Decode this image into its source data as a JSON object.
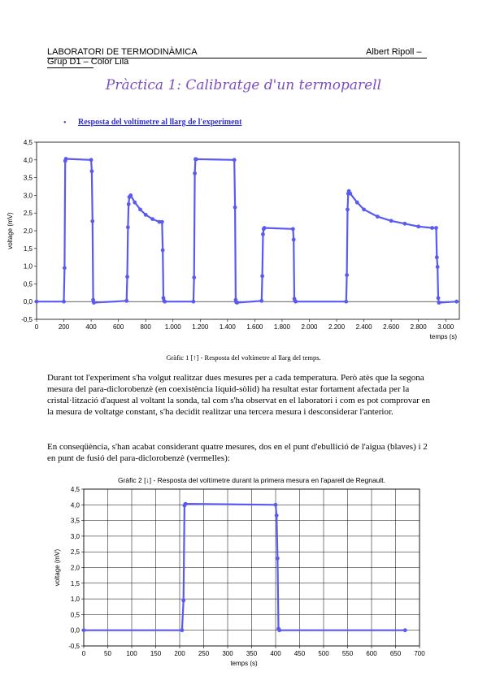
{
  "header": {
    "line1": "LABORATORI DE TERMODINÀMICA",
    "line2": "Grup D1 – Color Lila",
    "author": "Albert Ripoll –"
  },
  "title": "Pràctica 1: Calibratge d'un termoparell",
  "section": {
    "bullet": "•",
    "heading": "Resposta del voltímetre al llarg de l'experiment"
  },
  "colors": {
    "series": "#5a5af0",
    "title": "#7a4fc4",
    "link": "#2f2fd0"
  },
  "chart_data": [
    {
      "type": "line",
      "title": "",
      "xlabel": "temps (s)",
      "ylabel": "voltage (mV)",
      "xlim": [
        0,
        3100
      ],
      "ylim": [
        -0.5,
        4.5
      ],
      "x_ticks": [
        0,
        200,
        400,
        600,
        800,
        1000,
        1200,
        1400,
        1600,
        1800,
        2000,
        2200,
        2400,
        2600,
        2800,
        3000
      ],
      "x_tick_labels": [
        "0",
        "200",
        "400",
        "600",
        "800",
        "1.000",
        "1.200",
        "1.400",
        "1.600",
        "1.800",
        "2.000",
        "2.200",
        "2.400",
        "2.600",
        "2.800",
        "3.000"
      ],
      "y_ticks": [
        -0.5,
        0.0,
        0.5,
        1.0,
        1.5,
        2.0,
        2.5,
        3.0,
        3.5,
        4.0,
        4.5
      ],
      "y_tick_labels": [
        "-0,5",
        "0,0",
        "0,5",
        "1,0",
        "1,5",
        "2,0",
        "2,5",
        "3,0",
        "3,5",
        "4,0",
        "4,5"
      ],
      "grid": false,
      "series": [
        {
          "x": [
            0,
            200,
            205,
            210,
            215,
            400,
            405,
            410,
            415,
            420,
            660,
            665,
            670,
            675,
            680,
            690,
            720,
            760,
            800,
            850,
            900,
            920,
            925,
            930,
            935,
            940,
            1150,
            1155,
            1160,
            1165,
            1170,
            1450,
            1455,
            1460,
            1465,
            1470,
            1650,
            1655,
            1660,
            1665,
            1670,
            1880,
            1885,
            1890,
            1895,
            1900,
            2270,
            2275,
            2280,
            2285,
            2290,
            2300,
            2350,
            2400,
            2500,
            2600,
            2700,
            2800,
            2900,
            2930,
            2935,
            2940,
            2945,
            2950,
            3080
          ],
          "y": [
            0.0,
            0.0,
            0.95,
            3.97,
            4.03,
            4.0,
            3.68,
            2.27,
            0.05,
            -0.03,
            0.02,
            0.7,
            2.1,
            2.75,
            2.95,
            3.0,
            2.8,
            2.6,
            2.45,
            2.33,
            2.25,
            2.25,
            1.45,
            0.1,
            0.02,
            0.0,
            0.0,
            0.68,
            3.62,
            4.02,
            4.02,
            4.0,
            2.66,
            0.05,
            -0.02,
            -0.03,
            0.02,
            0.72,
            1.9,
            2.05,
            2.08,
            2.05,
            1.75,
            0.08,
            0.02,
            0.0,
            0.0,
            0.75,
            2.6,
            3.05,
            3.12,
            3.05,
            2.8,
            2.6,
            2.4,
            2.28,
            2.2,
            2.12,
            2.08,
            2.08,
            1.25,
            0.98,
            0.1,
            -0.03,
            0.0
          ]
        }
      ]
    },
    {
      "type": "line",
      "title": "Gràfic 2 [↓] - Resposta del voltímetre durant la primera mesura en l'aparell de Regnault.",
      "xlabel": "temps (s)",
      "ylabel": "voltage (mV)",
      "xlim": [
        0,
        700
      ],
      "ylim": [
        -0.5,
        4.5
      ],
      "x_ticks": [
        0,
        50,
        100,
        150,
        200,
        250,
        300,
        350,
        400,
        450,
        500,
        550,
        600,
        650,
        700
      ],
      "x_tick_labels": [
        "0",
        "50",
        "100",
        "150",
        "200",
        "250",
        "300",
        "350",
        "400",
        "450",
        "500",
        "550",
        "600",
        "650",
        "700"
      ],
      "y_ticks": [
        -0.5,
        0.0,
        0.5,
        1.0,
        1.5,
        2.0,
        2.5,
        3.0,
        3.5,
        4.0,
        4.5
      ],
      "y_tick_labels": [
        "-0,5",
        "0,0",
        "0,5",
        "1,0",
        "1,5",
        "2,0",
        "2,5",
        "3,0",
        "3,5",
        "4,0",
        "4,5"
      ],
      "grid": true,
      "series": [
        {
          "x": [
            0,
            205,
            208,
            210,
            212,
            400,
            402,
            404,
            406,
            408,
            670
          ],
          "y": [
            0.0,
            0.0,
            0.95,
            3.98,
            4.03,
            4.0,
            3.66,
            2.29,
            0.05,
            0.0,
            0.0
          ]
        }
      ]
    }
  ],
  "caption1": "Gràfic 1 [↑] - Resposta del voltímetre al llarg del temps.",
  "para1": "Durant tot l'experiment s'ha volgut realitzar dues mesures per a cada temperatura. Però atès que la segona mesura del para-diclorobenzè (en coexistència líquid-sòlid) ha resultat estar fortament afectada per la cristal·lització d'aquest al voltant la sonda, tal com s'ha observat en el laboratori i com es pot comprovar en la mesura de voltatge constant, s'ha decidit realitzar una tercera mesura i desconsiderar l'anterior.",
  "para2": "En conseqüència, s'han acabat considerant quatre mesures, dos en el punt d'ebullició de l'aigua (blaves) i 2 en punt de fusió del para-diclorobenzè (vermelles):"
}
